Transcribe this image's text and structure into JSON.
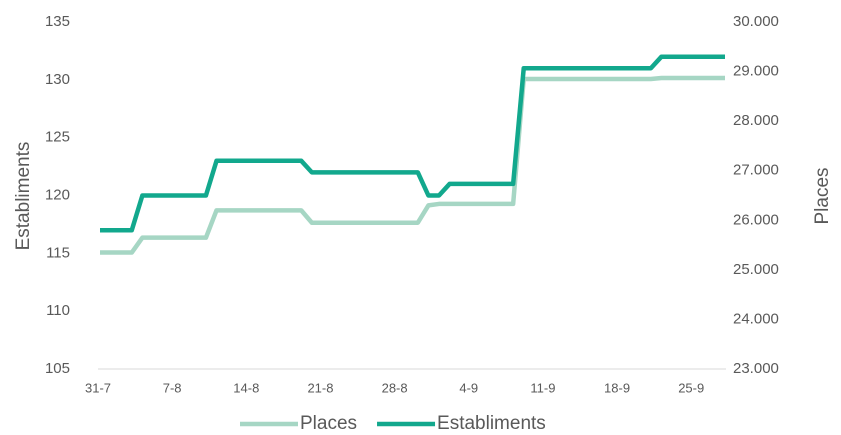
{
  "chart_data": {
    "type": "line",
    "categories": [
      "31-7",
      null,
      null,
      null,
      null,
      null,
      null,
      "7-8",
      null,
      null,
      null,
      null,
      null,
      null,
      "14-8",
      null,
      null,
      null,
      null,
      null,
      null,
      "21-8",
      null,
      null,
      null,
      null,
      null,
      null,
      "28-8",
      null,
      null,
      null,
      null,
      null,
      null,
      "4-9",
      null,
      null,
      null,
      null,
      null,
      null,
      "11-9",
      null,
      null,
      null,
      null,
      null,
      null,
      "18-9",
      null,
      null,
      null,
      null,
      null,
      null,
      "25-9",
      null,
      null,
      null
    ],
    "series": [
      {
        "name": "Places",
        "color": "#a6d6c4",
        "axis": "y2",
        "values": [
          25350,
          25350,
          25350,
          25350,
          25650,
          25650,
          25650,
          25650,
          25650,
          25650,
          25650,
          26200,
          26200,
          26200,
          26200,
          26200,
          26200,
          26200,
          26200,
          26200,
          25950,
          25950,
          25950,
          25950,
          25950,
          25950,
          25950,
          25950,
          25950,
          25950,
          25950,
          26300,
          26330,
          26330,
          26330,
          26330,
          26330,
          26330,
          26330,
          26330,
          28850,
          28850,
          28850,
          28850,
          28850,
          28850,
          28850,
          28850,
          28850,
          28850,
          28850,
          28850,
          28850,
          28870,
          28870,
          28870,
          28870,
          28870,
          28870,
          28870
        ]
      },
      {
        "name": "Establiments",
        "color": "#12a88d",
        "values": [
          117,
          117,
          117,
          117,
          120,
          120,
          120,
          120,
          120,
          120,
          120,
          123,
          123,
          123,
          123,
          123,
          123,
          123,
          123,
          123,
          122,
          122,
          122,
          122,
          122,
          122,
          122,
          122,
          122,
          122,
          122,
          120,
          120,
          121,
          121,
          121,
          121,
          121,
          121,
          121,
          131,
          131,
          131,
          131,
          131,
          131,
          131,
          131,
          131,
          131,
          131,
          131,
          131,
          132,
          132,
          132,
          132,
          132,
          132,
          132
        ]
      }
    ],
    "y_label": "Establiments",
    "y2_label": "Places",
    "ylim": [
      105,
      135
    ],
    "yticks": [
      105,
      110,
      115,
      120,
      125,
      130,
      135
    ],
    "y2lim": [
      23000,
      30000
    ],
    "y2ticks": [
      {
        "value": 23000,
        "label": "23.000"
      },
      {
        "value": 24000,
        "label": "24.000"
      },
      {
        "value": 25000,
        "label": "25.000"
      },
      {
        "value": 26000,
        "label": "26.000"
      },
      {
        "value": 27000,
        "label": "27.000"
      },
      {
        "value": 28000,
        "label": "28.000"
      },
      {
        "value": 29000,
        "label": "29.000"
      },
      {
        "value": 30000,
        "label": "30.000"
      }
    ],
    "legend": "bottom"
  }
}
